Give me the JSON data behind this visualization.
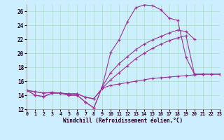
{
  "bg_color": "#cceeff",
  "line_color": "#993399",
  "grid_color": "#aaddcc",
  "xlabel": "Windchill (Refroidissement éolien,°C)",
  "xlim": [
    0,
    23
  ],
  "ylim": [
    12,
    27
  ],
  "yticks": [
    12,
    14,
    16,
    18,
    20,
    22,
    24,
    26
  ],
  "xticks": [
    0,
    1,
    2,
    3,
    4,
    5,
    6,
    7,
    8,
    9,
    10,
    11,
    12,
    13,
    14,
    15,
    16,
    17,
    18,
    19,
    20,
    21,
    22,
    23
  ],
  "c1x": [
    0,
    1,
    2,
    3,
    4,
    5,
    6,
    7,
    8,
    9,
    10,
    11,
    12,
    13,
    14,
    15,
    16,
    17,
    18,
    19,
    20,
    21
  ],
  "c1y": [
    14.7,
    14.0,
    13.8,
    14.3,
    14.3,
    14.0,
    14.0,
    13.0,
    12.2,
    15.2,
    20.1,
    21.9,
    24.5,
    26.5,
    26.9,
    26.8,
    26.2,
    25.0,
    24.7,
    19.4,
    17.0,
    17.0
  ],
  "c2x": [
    0,
    1,
    2,
    3,
    4,
    5,
    6,
    7,
    8,
    9,
    10,
    11,
    12,
    13,
    14,
    15,
    16,
    17,
    18,
    19,
    20
  ],
  "c2y": [
    14.7,
    14.0,
    13.8,
    14.3,
    14.3,
    14.0,
    14.0,
    13.0,
    12.2,
    15.2,
    17.2,
    18.5,
    19.5,
    20.5,
    21.3,
    21.9,
    22.4,
    22.9,
    23.3,
    23.1,
    22.0
  ],
  "c3x": [
    0,
    1,
    2,
    3,
    4,
    5,
    6,
    7,
    8,
    9,
    10,
    11,
    12,
    13,
    14,
    15,
    16,
    17,
    18,
    19,
    20,
    21,
    22,
    23
  ],
  "c3y": [
    14.7,
    14.5,
    14.3,
    14.4,
    14.3,
    14.2,
    14.2,
    13.7,
    13.5,
    15.0,
    15.4,
    15.6,
    15.8,
    16.0,
    16.2,
    16.4,
    16.5,
    16.6,
    16.7,
    16.8,
    16.9,
    17.0,
    17.0,
    17.0
  ],
  "c4x": [
    0,
    1,
    2,
    3,
    4,
    5,
    6,
    7,
    8,
    9,
    10,
    11,
    12,
    13,
    14,
    15,
    16,
    17,
    18,
    19,
    20,
    21,
    22,
    23
  ],
  "c4y": [
    14.7,
    14.5,
    14.3,
    14.4,
    14.3,
    14.2,
    14.2,
    13.7,
    13.5,
    15.0,
    16.2,
    17.2,
    18.2,
    19.2,
    20.0,
    20.7,
    21.3,
    21.8,
    22.2,
    22.5,
    17.0,
    17.0,
    17.0,
    17.0
  ]
}
